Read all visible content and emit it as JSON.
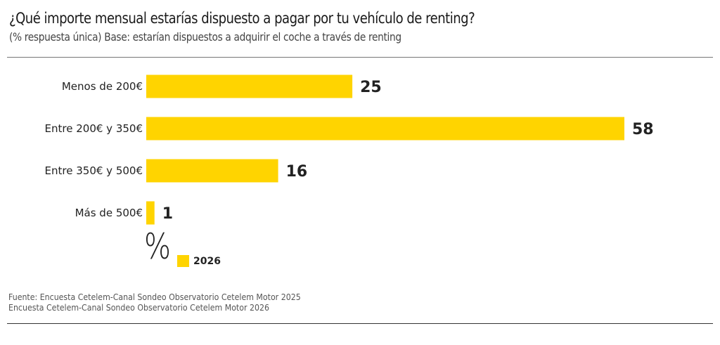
{
  "header": {
    "title": "¿Qué importe mensual estarías dispuesto a pagar por tu vehículo de renting?",
    "subtitle": "(% respuesta única) Base: estarían dispuestos a adquirir el coche a través de renting"
  },
  "chart_data": {
    "type": "bar",
    "orientation": "horizontal",
    "title": "¿Qué importe mensual estarías dispuesto a pagar por tu vehículo de renting?",
    "subtitle": "(% respuesta única) Base: estarían dispuestos a adquirir el coche a través de renting",
    "categories": [
      "Menos de 200€",
      "Entre 200€ y 350€",
      "Entre 350€ y 500€",
      "Más de 500€"
    ],
    "series": [
      {
        "name": "2026",
        "values": [
          25,
          58,
          16,
          1
        ],
        "color": "#FFD400"
      }
    ],
    "unit_label": "%",
    "xlabel": "",
    "ylabel": "",
    "xlim": [
      0,
      58
    ],
    "grid": false,
    "data_labels": true,
    "legend": {
      "position": "bottom-left",
      "entries": [
        "2026"
      ]
    }
  },
  "legend": {
    "unit_symbol": "%",
    "label": "2026"
  },
  "footer": {
    "source_line1": "Fuente: Encuesta Cetelem-Canal Sondeo Observatorio Cetelem Motor 2025",
    "source_line2": "Encuesta Cetelem-Canal Sondeo Observatorio Cetelem Motor 2026"
  }
}
